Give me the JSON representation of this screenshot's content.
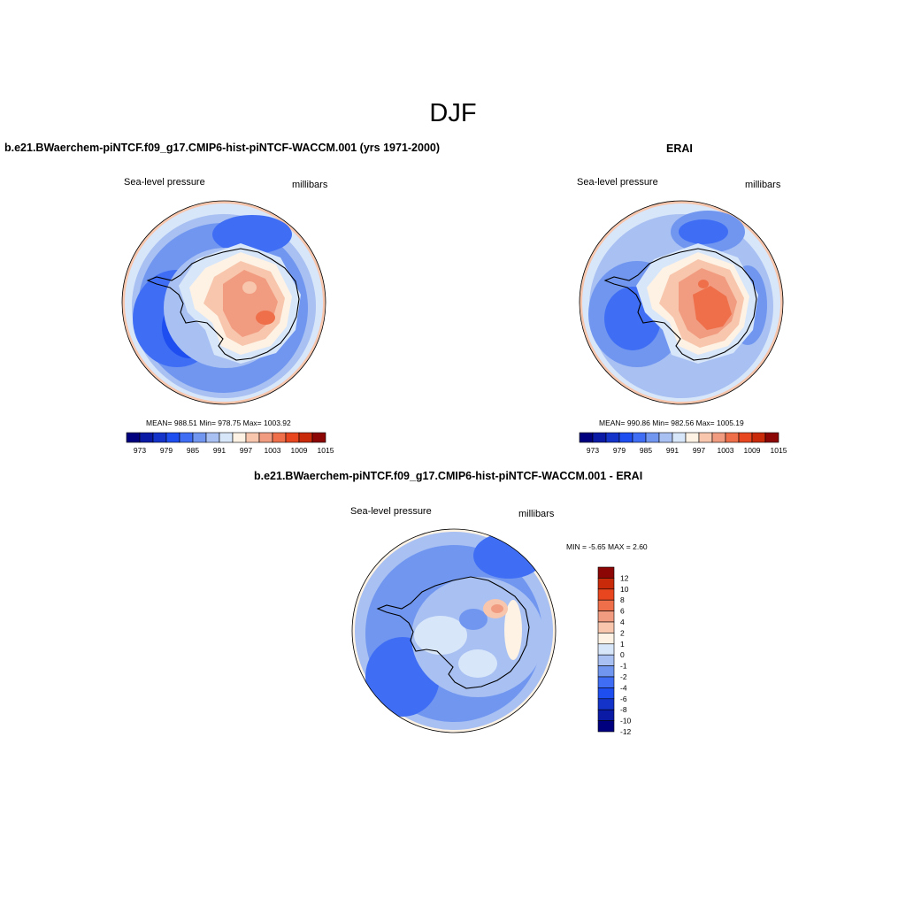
{
  "figure": {
    "season": "DJF",
    "panels": [
      {
        "title": "b.e21.BWaerchem-piNTCF.f09_g17.CMIP6-hist-piNTCF-WACCM.001 (yrs 1971-2000)",
        "variable": "Sea-level pressure",
        "units": "millibars",
        "stats": "MEAN= 988.51   Min= 978.75   Max= 1003.92",
        "colorbar_labels": [
          "973",
          "979",
          "985",
          "991",
          "997",
          "1003",
          "1009",
          "1015"
        ]
      },
      {
        "title": "ERAI",
        "variable": "Sea-level pressure",
        "units": "millibars",
        "stats": "MEAN= 990.86   Min= 982.56   Max= 1005.19",
        "colorbar_labels": [
          "973",
          "979",
          "985",
          "991",
          "997",
          "1003",
          "1009",
          "1015"
        ]
      },
      {
        "title": "b.e21.BWaerchem-piNTCF.f09_g17.CMIP6-hist-piNTCF-WACCM.001 - ERAI",
        "variable": "Sea-level pressure",
        "units": "millibars",
        "stats": "MIN =  -5.65 MAX =   2.60",
        "colorbar_labels": [
          "12",
          "10",
          "8",
          "6",
          "4",
          "2",
          "1",
          "0",
          "-1",
          "-2",
          "-4",
          "-6",
          "-8",
          "-10",
          "-12"
        ]
      }
    ]
  },
  "colors": {
    "abs_scale": [
      "#00007f",
      "#0a1aa5",
      "#1433c8",
      "#1e4df0",
      "#3f6ef5",
      "#7096f0",
      "#a8c0f2",
      "#d8e6fa",
      "#fdf2e4",
      "#f7c6ad",
      "#f19c80",
      "#ee6f4a",
      "#e8461e",
      "#c82a0a",
      "#8c0606"
    ],
    "diff_scale": [
      "#8c0606",
      "#c82a0a",
      "#e8461e",
      "#ee6f4a",
      "#f19c80",
      "#f7c6ad",
      "#fdf2e4",
      "#d8e6fa",
      "#a8c0f2",
      "#7096f0",
      "#3f6ef5",
      "#1e4df0",
      "#1433c8",
      "#0a1aa5",
      "#00007f"
    ]
  }
}
